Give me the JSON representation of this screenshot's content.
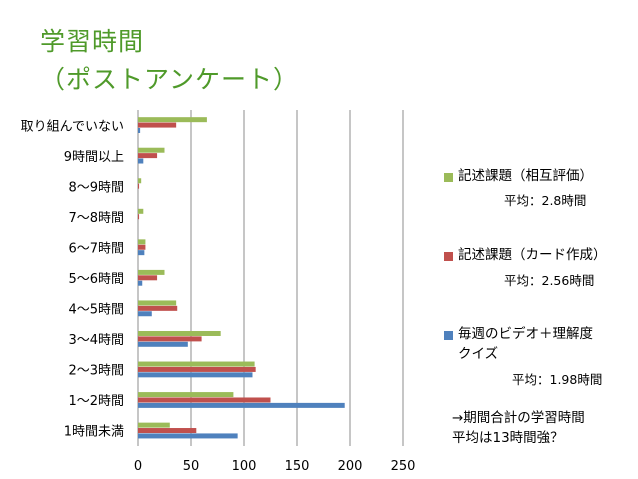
{
  "title": {
    "line1": "学習時間",
    "line2": "（ポストアンケート）"
  },
  "chart_data": {
    "type": "bar",
    "orientation": "horizontal",
    "categories": [
      "取り組んでいない",
      "9時間以上",
      "8～9時間",
      "7～8時間",
      "6～7時間",
      "5～6時間",
      "4～5時間",
      "3～4時間",
      "2～3時間",
      "1～2時間",
      "1時間未満"
    ],
    "series": [
      {
        "name": "記述課題（相互評価）",
        "color": "#9bbb59",
        "values": [
          65,
          25,
          3,
          5,
          7,
          25,
          36,
          78,
          110,
          90,
          30
        ]
      },
      {
        "name": "記述課題（カード作成）",
        "color": "#c0504d",
        "values": [
          36,
          18,
          1,
          1,
          7,
          18,
          37,
          60,
          111,
          125,
          55
        ]
      },
      {
        "name": "毎週のビデオ＋理解度クイズ",
        "color": "#4f81bd",
        "values": [
          2,
          5,
          0,
          0,
          6,
          4,
          13,
          47,
          108,
          195,
          94
        ]
      }
    ],
    "xlim": [
      0,
      250
    ],
    "xticks": [
      0,
      50,
      100,
      150,
      200,
      250
    ],
    "grid": true,
    "legend_position": "right"
  },
  "legend": {
    "items": [
      {
        "label_line1": "記述課題（相互評価）",
        "label_line2": "",
        "avg": "平均：2.8時間"
      },
      {
        "label_line1": "記述課題（カード作成）",
        "label_line2": "",
        "avg": "平均：2.56時間"
      },
      {
        "label_line1": "毎週のビデオ＋理解度",
        "label_line2": "クイズ",
        "avg": "平均：1.98時間"
      }
    ]
  },
  "note": {
    "line1": "→期間合計の学習時間",
    "line2": "平均は13時間強？"
  }
}
